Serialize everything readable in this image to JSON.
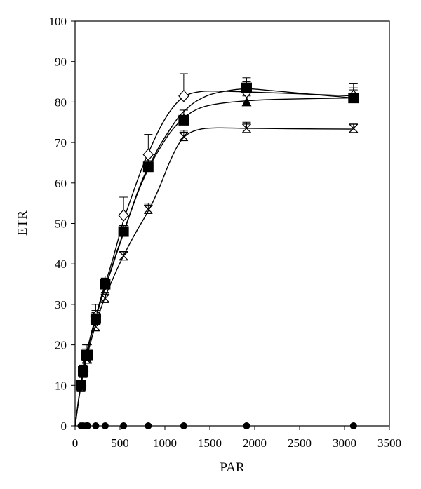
{
  "chart_data": {
    "type": "scatter",
    "title": "",
    "xlabel": "PAR",
    "ylabel": "ETR",
    "xlim": [
      0,
      3500
    ],
    "ylim": [
      0,
      100
    ],
    "xticks": [
      0,
      500,
      1000,
      1500,
      2000,
      2500,
      3000,
      3500
    ],
    "yticks": [
      0,
      10,
      20,
      30,
      40,
      50,
      60,
      70,
      80,
      90,
      100
    ],
    "grid": false,
    "legend": "none",
    "x": [
      66,
      90,
      125,
      140,
      230,
      335,
      540,
      815,
      1210,
      1910,
      3100
    ],
    "series": [
      {
        "marker": "filled-square",
        "color": "#000000",
        "values": [
          10,
          13.5,
          17.5,
          17.5,
          26.5,
          35,
          48,
          64,
          75.5,
          83.5,
          81
        ],
        "errors": [
          1.0,
          1.5,
          2.0,
          2.0,
          2.0,
          1.5,
          1.5,
          1.5,
          2.5,
          2.5,
          2.5
        ],
        "curve": [
          [
            0,
            0
          ],
          [
            60,
            9.7
          ],
          [
            120,
            17
          ],
          [
            180,
            22.5
          ],
          [
            240,
            27.5
          ],
          [
            300,
            32
          ],
          [
            360,
            35.8
          ],
          [
            420,
            40
          ],
          [
            480,
            44
          ],
          [
            540,
            47.8
          ],
          [
            620,
            53
          ],
          [
            700,
            58
          ],
          [
            780,
            62.3
          ],
          [
            860,
            65.8
          ],
          [
            950,
            69.5
          ],
          [
            1050,
            73
          ],
          [
            1150,
            76.2
          ],
          [
            1250,
            78.5
          ],
          [
            1350,
            80.2
          ],
          [
            1500,
            81.8
          ],
          [
            1700,
            82.8
          ],
          [
            1910,
            83.3
          ],
          [
            2200,
            82.8
          ],
          [
            2600,
            82
          ],
          [
            3100,
            81
          ]
        ]
      },
      {
        "marker": "filled-triangle",
        "color": "#000000",
        "values": [
          10,
          13,
          17,
          17.5,
          26,
          35,
          48,
          64,
          76,
          80,
          81
        ],
        "errors": [
          1.0,
          1.5,
          2.0,
          2.0,
          2.0,
          1.5,
          1.5,
          1.5,
          2.0,
          1.5,
          2.0
        ],
        "curve": [
          [
            0,
            0
          ],
          [
            60,
            9.5
          ],
          [
            120,
            16.8
          ],
          [
            180,
            22.3
          ],
          [
            240,
            27.3
          ],
          [
            300,
            31.8
          ],
          [
            360,
            35.7
          ],
          [
            420,
            39.7
          ],
          [
            480,
            43.7
          ],
          [
            540,
            47.6
          ],
          [
            620,
            52.8
          ],
          [
            700,
            57.7
          ],
          [
            780,
            61.8
          ],
          [
            860,
            65.3
          ],
          [
            950,
            68.8
          ],
          [
            1050,
            72.2
          ],
          [
            1150,
            74.8
          ],
          [
            1250,
            76.8
          ],
          [
            1400,
            78.6
          ],
          [
            1600,
            79.6
          ],
          [
            1910,
            80.3
          ],
          [
            2300,
            80.7
          ],
          [
            3100,
            81
          ]
        ]
      },
      {
        "marker": "open-diamond",
        "color": "#000000",
        "values": [
          10,
          13.5,
          17.5,
          17.5,
          27,
          35,
          52,
          67,
          81.5,
          82.5,
          81.5
        ],
        "errors": [
          1.0,
          1.5,
          2.5,
          2.5,
          3.0,
          2.0,
          4.5,
          5.0,
          5.5,
          2.5,
          3.0
        ],
        "curve": [
          [
            0,
            0
          ],
          [
            60,
            9.8
          ],
          [
            120,
            17.2
          ],
          [
            180,
            22.8
          ],
          [
            240,
            27.8
          ],
          [
            300,
            32.5
          ],
          [
            360,
            36.8
          ],
          [
            420,
            41.2
          ],
          [
            480,
            46
          ],
          [
            540,
            50.8
          ],
          [
            620,
            56
          ],
          [
            700,
            61
          ],
          [
            780,
            65.6
          ],
          [
            860,
            69.6
          ],
          [
            950,
            73.8
          ],
          [
            1050,
            77.5
          ],
          [
            1150,
            80.2
          ],
          [
            1250,
            81.8
          ],
          [
            1400,
            82.6
          ],
          [
            1600,
            82.7
          ],
          [
            1910,
            82.5
          ],
          [
            2300,
            82.2
          ],
          [
            3100,
            81.5
          ]
        ]
      },
      {
        "marker": "x-bar",
        "color": "#000000",
        "values": [
          9.5,
          13,
          16.5,
          16.5,
          24.5,
          31.5,
          42,
          53.5,
          71.5,
          73.5,
          73.5
        ],
        "errors": [
          1.0,
          1.5,
          1.5,
          1.5,
          1.5,
          1.5,
          1.0,
          1.5,
          1.5,
          1.5,
          1.0
        ],
        "curve": [
          [
            0,
            0
          ],
          [
            60,
            9.2
          ],
          [
            120,
            16
          ],
          [
            180,
            21.2
          ],
          [
            240,
            25.8
          ],
          [
            300,
            29.8
          ],
          [
            360,
            33.2
          ],
          [
            420,
            36.3
          ],
          [
            480,
            39.3
          ],
          [
            540,
            42
          ],
          [
            620,
            45.5
          ],
          [
            700,
            48.7
          ],
          [
            780,
            51.7
          ],
          [
            860,
            55
          ],
          [
            950,
            59.5
          ],
          [
            1050,
            65
          ],
          [
            1150,
            69.5
          ],
          [
            1250,
            72
          ],
          [
            1400,
            73.3
          ],
          [
            1600,
            73.6
          ],
          [
            1910,
            73.5
          ],
          [
            2400,
            73.4
          ],
          [
            3100,
            73.3
          ]
        ]
      },
      {
        "marker": "filled-circle",
        "color": "#000000",
        "values": [
          0,
          0,
          0,
          0,
          0,
          0,
          0,
          0,
          0,
          0,
          0
        ],
        "errors": [
          0,
          0,
          0,
          0,
          0,
          0,
          0,
          0,
          0,
          0,
          0
        ],
        "curve": []
      }
    ]
  }
}
